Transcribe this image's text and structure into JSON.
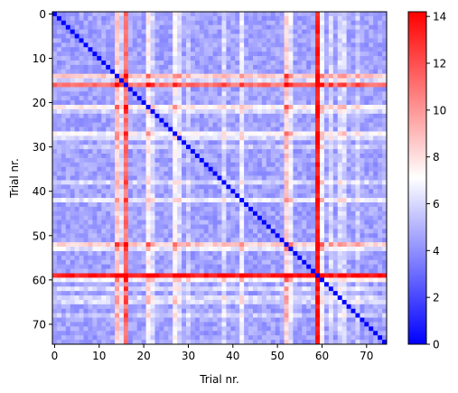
{
  "chart_data": {
    "type": "heatmap",
    "title": "",
    "xlabel": "Trial nr.",
    "ylabel": "Trial nr.",
    "n": 75,
    "x_ticks": [
      0,
      10,
      20,
      30,
      40,
      50,
      60,
      70
    ],
    "y_ticks": [
      0,
      10,
      20,
      30,
      40,
      50,
      60,
      70
    ],
    "colorbar": {
      "min": 0,
      "max": 14.2,
      "ticks": [
        0,
        2,
        4,
        6,
        8,
        10,
        12,
        14
      ],
      "colormap": "bwr",
      "colors": {
        "low": "#0000ff",
        "mid": "#ffffff",
        "high": "#ff0000"
      }
    },
    "diagonal_value": 0,
    "base_value": 4.5,
    "trial_offsets": {
      "14": 4.0,
      "15": 1.5,
      "16": 6.5,
      "21": 3.0,
      "22": 1.5,
      "27": 2.5,
      "28": 1.5,
      "30": 1.0,
      "38": 1.5,
      "42": 2.0,
      "52": 4.0,
      "53": 2.0,
      "59": 9.0,
      "60": 2.5,
      "62": 1.5,
      "64": 1.5,
      "65": 1.5,
      "68": 1.0
    }
  },
  "axes": {
    "x_tick_labels": [
      "0",
      "10",
      "20",
      "30",
      "40",
      "50",
      "60",
      "70"
    ],
    "y_tick_labels": [
      "0",
      "10",
      "20",
      "30",
      "40",
      "50",
      "60",
      "70"
    ],
    "colorbar_tick_labels": [
      "0",
      "2",
      "4",
      "6",
      "8",
      "10",
      "12",
      "14"
    ]
  }
}
